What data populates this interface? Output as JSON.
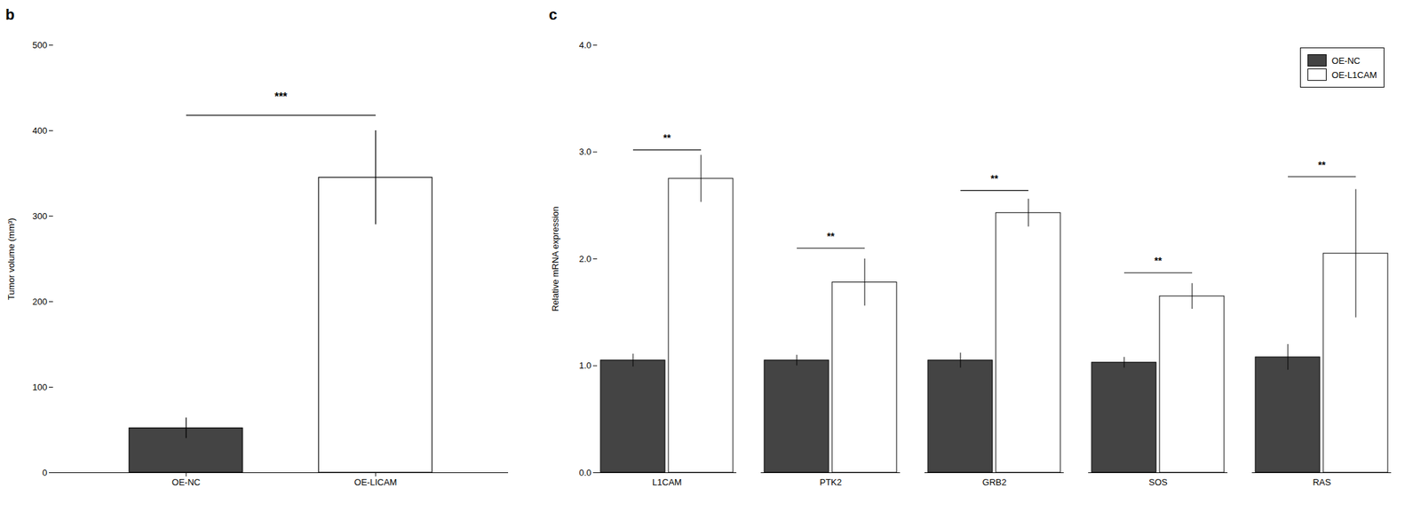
{
  "chart_data": [
    {
      "type": "bar",
      "title": "b",
      "categories": [
        "OE-NC",
        "OE-LICAM"
      ],
      "values": [
        52,
        345
      ],
      "errors": [
        12,
        55
      ],
      "colors": [
        "#444444",
        "#ffffff"
      ],
      "ylabel": "Tumor volume (mm³)",
      "ylim": [
        0,
        500
      ],
      "yticks": [
        0,
        100,
        200,
        300,
        400,
        500
      ],
      "annotations": [
        {
          "text": "***",
          "from": "OE-NC",
          "to": "OE-LICAM",
          "y": 435,
          "line_y": 418
        }
      ]
    },
    {
      "type": "bar",
      "title": "c",
      "categories": [
        "L1CAM",
        "PTK2",
        "GRB2",
        "SOS",
        "RAS"
      ],
      "series": [
        {
          "name": "OE-NC",
          "color": "#444444",
          "values": [
            1.05,
            1.05,
            1.05,
            1.03,
            1.08
          ],
          "errors": [
            0.06,
            0.05,
            0.07,
            0.05,
            0.12
          ]
        },
        {
          "name": "OE-L1CAM",
          "color": "#ffffff",
          "values": [
            2.75,
            1.78,
            2.43,
            1.65,
            2.05
          ],
          "errors": [
            0.22,
            0.22,
            0.13,
            0.12,
            0.6
          ]
        }
      ],
      "ylabel": "Relative mRNA expression",
      "ylim": [
        0,
        4
      ],
      "yticks": [
        0,
        1,
        2,
        3,
        4
      ],
      "legend": "upper right",
      "annotations": [
        {
          "category": "L1CAM",
          "text": "**",
          "y": 3.1,
          "line_y": 3.02
        },
        {
          "category": "PTK2",
          "text": "**",
          "y": 2.18,
          "line_y": 2.1
        },
        {
          "category": "GRB2",
          "text": "**",
          "y": 2.72,
          "line_y": 2.64
        },
        {
          "category": "SOS",
          "text": "**",
          "y": 1.95,
          "line_y": 1.87
        },
        {
          "category": "RAS",
          "text": "**",
          "y": 2.85,
          "line_y": 2.77
        }
      ]
    }
  ]
}
